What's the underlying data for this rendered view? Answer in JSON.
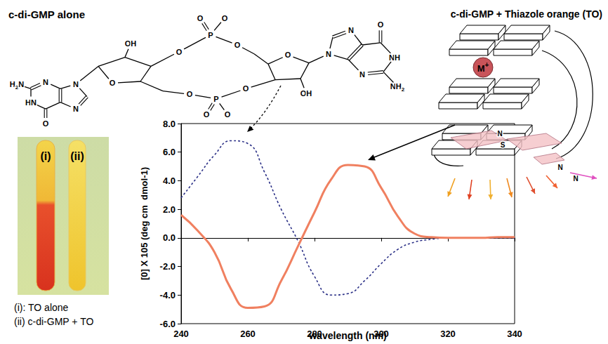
{
  "chart_data": {
    "type": "line",
    "x_label": "wavelength (nm)",
    "y_label": "[0] X 105 (deg cm  dmol-1)",
    "x": [
      240,
      245,
      250,
      255,
      260,
      265,
      270,
      275,
      280,
      285,
      290,
      295,
      300,
      305,
      310,
      315,
      320,
      325,
      330,
      335,
      340
    ],
    "xlim": [
      240,
      340
    ],
    "xticks": [
      240,
      260,
      280,
      300,
      320,
      340
    ],
    "ylim": [
      -6,
      8
    ],
    "yticks": [
      {
        "value": -6,
        "label": "-6.0"
      },
      {
        "value": -4,
        "label": "-4.0"
      },
      {
        "value": -2,
        "label": "-2.0"
      },
      {
        "value": 0,
        "label": "0.0"
      },
      {
        "value": 2,
        "label": "2.0"
      },
      {
        "value": 4,
        "label": "4.0"
      },
      {
        "value": 6,
        "label": "6.0"
      },
      {
        "value": 8,
        "label": "8.0"
      }
    ],
    "grid": false,
    "series": [
      {
        "name": "c-di-GMP alone",
        "color": "#2a2f86",
        "line_style": "dotted",
        "values": [
          2.8,
          4.3,
          5.8,
          6.8,
          6.6,
          4.6,
          2.0,
          -0.2,
          -2.7,
          -4.0,
          -3.9,
          -3.0,
          -1.8,
          -0.8,
          -0.3,
          -0.1,
          0.0,
          0.0,
          0.0,
          0.0,
          0.0
        ]
      },
      {
        "name": "c-di-GMP + Thiazole orange (TO)",
        "color": "#f08060",
        "line_style": "solid",
        "values": [
          1.6,
          0.5,
          -1.0,
          -3.6,
          -4.9,
          -4.8,
          -3.0,
          -0.6,
          1.8,
          4.1,
          5.1,
          5.0,
          3.5,
          1.5,
          0.3,
          0.05,
          0.0,
          0.0,
          0.0,
          0.05,
          0.05
        ]
      }
    ]
  },
  "structure": {
    "atoms": [
      "H2N",
      "N",
      "HN",
      "O",
      "N",
      "N",
      "O",
      "OH",
      "O",
      "P",
      "O",
      "O",
      "O",
      "O",
      "OH",
      "O",
      "P",
      "O",
      "O",
      "O",
      "N",
      "N",
      "NH",
      "NH2",
      "O",
      "N"
    ]
  },
  "photo": {
    "tube_labels": [
      "(i)",
      "(ii)"
    ],
    "captions": [
      "(i): TO alone",
      "(ii) c-di-GMP + TO"
    ]
  },
  "schematic": {
    "labels": [
      "M+",
      "N",
      "S",
      "N",
      "N"
    ]
  }
}
